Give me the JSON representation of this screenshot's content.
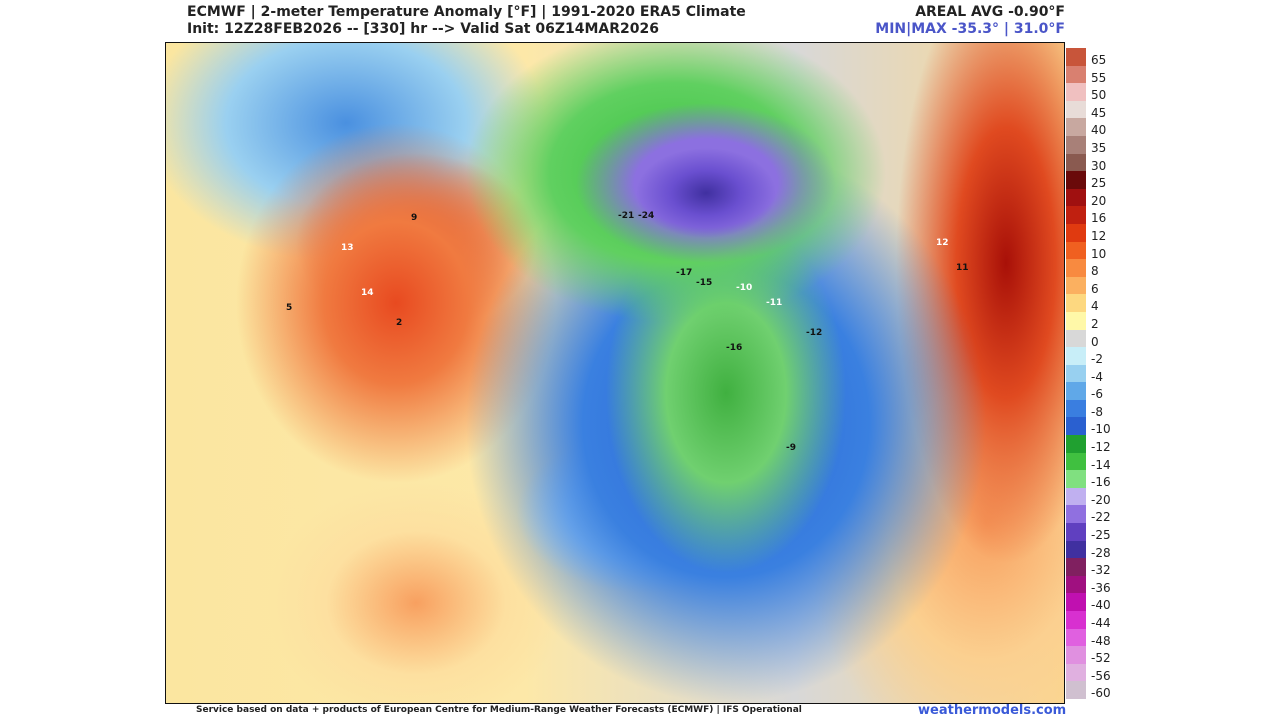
{
  "header": {
    "title": "ECMWF | 2-meter Temperature Anomaly [°F] | 1991-2020 ERA5 Climate",
    "subtitle": "Init: 12Z28FEB2026 -- [330] hr --> Valid Sat 06Z14MAR2026",
    "areal_avg": "AREAL AVG -0.90°F",
    "min_max": "MIN|MAX -35.3° | 31.0°F"
  },
  "colorbar": {
    "labels": [
      "65",
      "55",
      "50",
      "45",
      "40",
      "35",
      "30",
      "25",
      "20",
      "16",
      "12",
      "10",
      "8",
      "6",
      "4",
      "2",
      "0",
      "-2",
      "-4",
      "-6",
      "-8",
      "-10",
      "-12",
      "-14",
      "-16",
      "-20",
      "-22",
      "-25",
      "-28",
      "-32",
      "-36",
      "-40",
      "-44",
      "-48",
      "-52",
      "-56",
      "-60"
    ],
    "colors": [
      "#c8553a",
      "#d98070",
      "#f0c0c0",
      "#e8dcd8",
      "#c8a8a0",
      "#a88078",
      "#8a5a50",
      "#6a0a0a",
      "#a01010",
      "#c02010",
      "#e03a10",
      "#f06020",
      "#f88a40",
      "#fbb060",
      "#fdd880",
      "#fff8a8",
      "#d8d8d8",
      "#c8eef8",
      "#98d0f0",
      "#60a8e8",
      "#3a7ee0",
      "#2a60d0",
      "#20a030",
      "#40c040",
      "#80e080",
      "#c0b0f0",
      "#9070e0",
      "#6040c0",
      "#4030a0",
      "#802060",
      "#a01080",
      "#c010b0",
      "#d830d0",
      "#e060e0",
      "#e090e0",
      "#e0b0e0",
      "#d0c0d0"
    ]
  },
  "map_labels": [
    {
      "t": "13",
      "w": true
    },
    {
      "t": "14",
      "w": true
    },
    {
      "t": "9"
    },
    {
      "t": "-21"
    },
    {
      "t": "-24"
    },
    {
      "t": "-17"
    },
    {
      "t": "-15"
    },
    {
      "t": "-16"
    },
    {
      "t": "-10",
      "w": true
    },
    {
      "t": "-11",
      "w": true
    },
    {
      "t": "-12"
    },
    {
      "t": "-9"
    },
    {
      "t": "5"
    },
    {
      "t": "2"
    },
    {
      "t": "12",
      "w": true
    },
    {
      "t": "11"
    }
  ],
  "footer": {
    "credit": "Service based on data + products of European Centre for Medium-Range Weather Forecasts (ECMWF) | IFS Operational",
    "brand": "weathermodels.com"
  }
}
